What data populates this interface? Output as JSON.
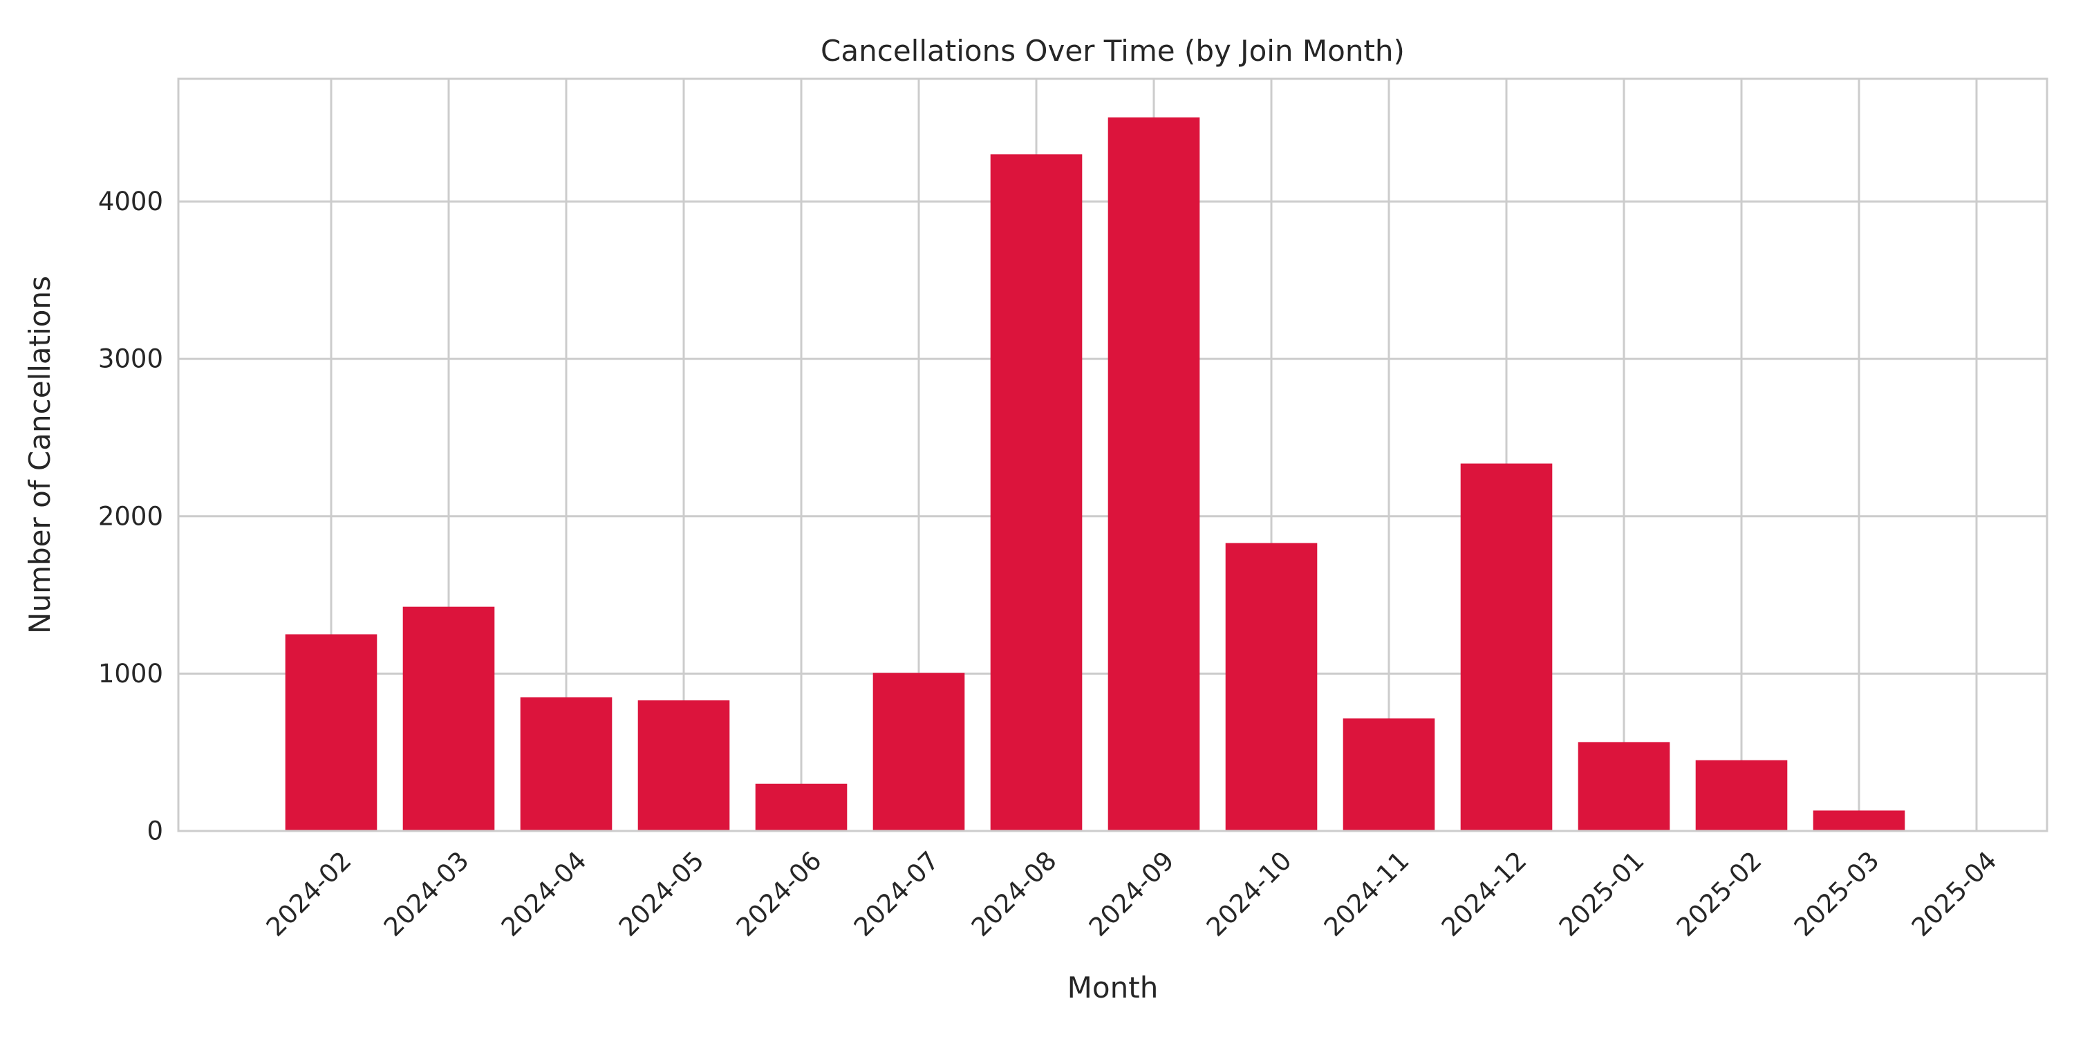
{
  "chart_data": {
    "type": "bar",
    "title": "Cancellations Over Time (by Join Month)",
    "xlabel": "Month",
    "ylabel": "Number of Cancellations",
    "categories": [
      "2024-02",
      "2024-03",
      "2024-04",
      "2024-05",
      "2024-06",
      "2024-07",
      "2024-08",
      "2024-09",
      "2024-10",
      "2024-11",
      "2024-12",
      "2025-01",
      "2025-02",
      "2025-03",
      "2025-04"
    ],
    "values": [
      1250,
      1425,
      850,
      830,
      300,
      1005,
      4300,
      4535,
      1830,
      715,
      2335,
      565,
      450,
      130,
      5
    ],
    "ylim": [
      0,
      4780
    ],
    "yticks": [
      0,
      1000,
      2000,
      3000,
      4000
    ],
    "ytick_labels": [
      "0",
      "1000",
      "2000",
      "3000",
      "4000"
    ],
    "grid": true,
    "legend": "none",
    "colors": {
      "bar": "#DC143C",
      "grid": "#CCCCCC",
      "axes_edge": "#CCCCCC",
      "text": "#262626",
      "background": "#FFFFFF"
    }
  }
}
